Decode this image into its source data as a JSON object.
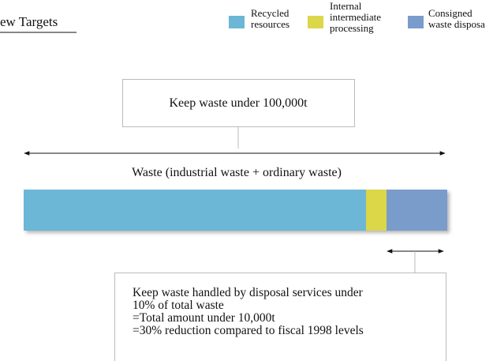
{
  "header": {
    "title": "ew Targets"
  },
  "legend": [
    {
      "lines": [
        "Recycled",
        "resources"
      ]
    },
    {
      "lines": [
        "Internal",
        "intermediate",
        "processing"
      ]
    },
    {
      "lines": [
        "Consigned",
        "waste disposa"
      ]
    }
  ],
  "target_box": {
    "text": "Keep waste under 100,000t"
  },
  "bar_label": "Waste (industrial waste + ordinary waste)",
  "disposal_box": {
    "lines": [
      "Keep waste handled by disposal services under",
      "10% of total waste",
      "=Total amount under 10,000t",
      "=30% reduction compared to fiscal 1998 levels"
    ]
  }
}
